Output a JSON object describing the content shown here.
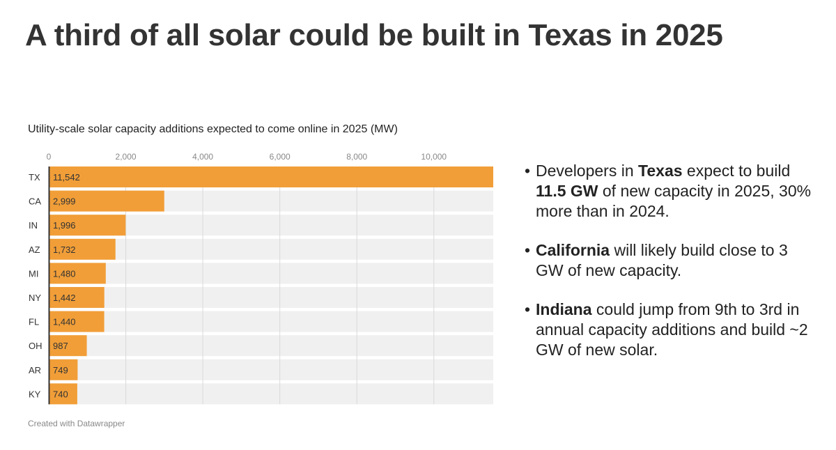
{
  "title": "A third of all solar could be built in Texas in 2025",
  "footer": "Created with Datawrapper",
  "colors": {
    "bar": "#f19e38",
    "track": "#f0f0f0",
    "grid": "#d9d9d9",
    "axis": "#333333"
  },
  "chart_data": {
    "type": "bar",
    "orientation": "horizontal",
    "title": "Utility-scale solar capacity additions expected to come online in 2025 (MW)",
    "categories": [
      "TX",
      "CA",
      "IN",
      "AZ",
      "MI",
      "NY",
      "FL",
      "OH",
      "AR",
      "KY"
    ],
    "values": [
      11542,
      2999,
      1996,
      1732,
      1480,
      1442,
      1440,
      987,
      749,
      740
    ],
    "value_labels": [
      "11,542",
      "2,999",
      "1,996",
      "1,732",
      "1,480",
      "1,442",
      "1,440",
      "987",
      "749",
      "740"
    ],
    "xticks": [
      0,
      2000,
      4000,
      6000,
      8000,
      10000
    ],
    "xtick_labels": [
      "0",
      "2,000",
      "4,000",
      "6,000",
      "8,000",
      "10,000"
    ],
    "xlim": [
      0,
      11542
    ],
    "xlabel": "",
    "ylabel": "",
    "grid": true
  },
  "bullets": [
    {
      "pre": "Developers in ",
      "bold": "Texas",
      "post": " expect to build ",
      "bold2": "11.5 GW",
      "post2": " of new capacity in 2025, 30% more than in 2024."
    },
    {
      "pre": "",
      "bold": "California",
      "post": " will likely build close to 3 GW of new capacity.",
      "bold2": "",
      "post2": ""
    },
    {
      "pre": "",
      "bold": "Indiana",
      "post": " could jump from 9th to 3rd in annual capacity additions and build ~2 GW of new solar.",
      "bold2": "",
      "post2": ""
    }
  ],
  "bullet_symbol": "•"
}
